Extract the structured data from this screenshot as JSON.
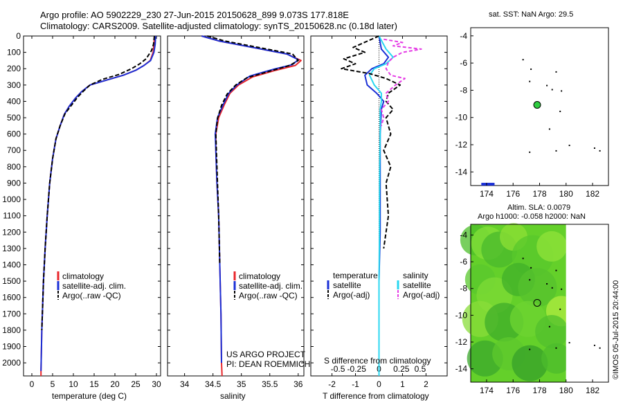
{
  "header": {
    "line1": "Argo profile: AO 5902229_230 27-Jun-2015 20150628_899 9.073S 177.818E",
    "line2": "Climatology: CARS2009. Satellite-adjusted climatology: synTS_20150628.nc (0.18d later)"
  },
  "colors": {
    "clim": "#e8262b",
    "sat": "#1a2fd6",
    "argo": "#000000",
    "cyan": "#28d7f0",
    "magenta": "#e53be5",
    "float": "#2ecc40"
  },
  "depth_ticks": [
    "0",
    "100",
    "200",
    "300",
    "400",
    "500",
    "600",
    "700",
    "800",
    "900",
    "1000",
    "1100",
    "1200",
    "1300",
    "1400",
    "1500",
    "1600",
    "1700",
    "1800",
    "1900",
    "2000"
  ],
  "chart_data": [
    {
      "type": "line",
      "id": "temperature",
      "xlabel": "temperature (deg C)",
      "ylabel": "",
      "xlim": [
        -2,
        31
      ],
      "ylim": [
        2080,
        0
      ],
      "xticks": [
        "0",
        "5",
        "10",
        "15",
        "20",
        "25",
        "30"
      ],
      "xtick_values": [
        0,
        5,
        10,
        15,
        20,
        25,
        30
      ],
      "legend": [
        "climatology",
        "satellite-adj. clim.",
        "Argo(..raw -QC)"
      ],
      "series": [
        {
          "name": "climatology",
          "color": "clim",
          "dash": "",
          "x": [
            29.5,
            29.4,
            29.2,
            28.5,
            27,
            25,
            22,
            18,
            14,
            12,
            10.5,
            9,
            7.8,
            6.8,
            5.8,
            5,
            4.3,
            3.7,
            3.2,
            2.8,
            2.4,
            2.2,
            2.2
          ],
          "depth": [
            0,
            50,
            100,
            150,
            180,
            210,
            240,
            270,
            300,
            340,
            380,
            430,
            480,
            550,
            630,
            750,
            900,
            1100,
            1300,
            1500,
            1800,
            2050,
            2080
          ]
        },
        {
          "name": "satellite",
          "color": "sat",
          "dash": "",
          "x": [
            29.8,
            29.7,
            29.4,
            28.6,
            27,
            25,
            22,
            18,
            14,
            12,
            10.5,
            9,
            7.8,
            6.8,
            5.8,
            5,
            4.3,
            3.7,
            3.2,
            2.8,
            2.4,
            2.2
          ],
          "depth": [
            0,
            50,
            100,
            150,
            180,
            210,
            240,
            270,
            300,
            340,
            380,
            430,
            480,
            550,
            630,
            750,
            900,
            1100,
            1300,
            1500,
            1800,
            2050
          ]
        },
        {
          "name": "Argo",
          "color": "argo",
          "dash": "6,3",
          "x": [
            29.5,
            29.3,
            28.8,
            27.5,
            26,
            24,
            21,
            17,
            14,
            12.5,
            11,
            9.5,
            8,
            6.8,
            5.8,
            5,
            4.3,
            3.7,
            3.2,
            2.8,
            2.4
          ],
          "depth": [
            0,
            50,
            90,
            140,
            170,
            200,
            235,
            265,
            300,
            335,
            375,
            425,
            475,
            550,
            630,
            750,
            900,
            1100,
            1300,
            1500,
            1800
          ]
        }
      ]
    },
    {
      "type": "line",
      "id": "salinity",
      "xlabel": "salinity",
      "xlim": [
        33.7,
        36.1
      ],
      "ylim": [
        2080,
        0
      ],
      "xticks": [
        "34",
        "34.5",
        "35",
        "35.5",
        "36"
      ],
      "xtick_values": [
        34,
        34.5,
        35,
        35.5,
        36
      ],
      "legend": [
        "climatology",
        "satellite-adj. clim.",
        "Argo(..raw -QC)"
      ],
      "footer": [
        "US ARGO PROJECT",
        "PI: DEAN ROEMMICH"
      ],
      "series": [
        {
          "name": "climatology",
          "color": "clim",
          "dash": "",
          "x": [
            34.3,
            34.6,
            35.2,
            35.8,
            36.05,
            35.95,
            35.6,
            35.2,
            34.95,
            34.8,
            34.7,
            34.6,
            34.55,
            34.55,
            34.57,
            34.6,
            34.62,
            34.64,
            34.65,
            34.66
          ],
          "depth": [
            0,
            30,
            70,
            110,
            150,
            180,
            210,
            250,
            300,
            350,
            420,
            500,
            600,
            700,
            900,
            1100,
            1400,
            1700,
            2000,
            2080
          ]
        },
        {
          "name": "satellite",
          "color": "sat",
          "dash": "",
          "x": [
            34.3,
            34.6,
            35.2,
            35.8,
            36.0,
            35.9,
            35.55,
            35.15,
            34.92,
            34.78,
            34.68,
            34.58,
            34.54,
            34.55,
            34.57,
            34.6,
            34.62,
            34.64,
            34.65
          ],
          "depth": [
            0,
            30,
            70,
            110,
            145,
            175,
            205,
            245,
            300,
            350,
            420,
            500,
            600,
            700,
            900,
            1100,
            1400,
            1700,
            2000
          ]
        },
        {
          "name": "Argo",
          "color": "argo",
          "dash": "6,3",
          "x": [
            34.4,
            34.7,
            35.3,
            35.9,
            36.0,
            35.85,
            35.5,
            35.1,
            34.9,
            34.75,
            34.65,
            34.58,
            34.55,
            34.56,
            34.58,
            34.6,
            34.62
          ],
          "depth": [
            0,
            30,
            70,
            110,
            150,
            180,
            215,
            255,
            300,
            355,
            425,
            505,
            600,
            700,
            900,
            1100,
            1400
          ]
        }
      ]
    },
    {
      "type": "line",
      "id": "difference",
      "xlabel": "T difference from climatology",
      "xlabel_top": "S difference from climatology",
      "xlim": [
        -2.9,
        2.9
      ],
      "ylim": [
        2080,
        0
      ],
      "xticks": [
        "-2",
        "-1",
        "0",
        "1",
        "2"
      ],
      "xtick_values": [
        -2,
        -1,
        0,
        1,
        2
      ],
      "sticks_top": [
        "-0.5",
        "-0.25",
        "0",
        "0.25",
        "0.5"
      ],
      "stick_values_top": [
        -1.75,
        -0.95,
        0,
        0.95,
        1.75
      ],
      "legend_t": [
        "temperature",
        "satellite",
        "Argo(-adj)"
      ],
      "legend_s": [
        "salinity",
        "satellite",
        "Argo(-adj)"
      ],
      "series": [
        {
          "name": "T satellite",
          "color": "sat",
          "dash": "",
          "x": [
            0,
            0.1,
            0.4,
            0.2,
            -0.3,
            -0.6,
            -0.5,
            -0.1,
            0.2,
            0.1,
            0.05,
            0.05,
            0.05,
            0.05,
            0.0,
            0.0,
            0.0
          ],
          "depth": [
            0,
            80,
            130,
            170,
            200,
            240,
            300,
            350,
            400,
            450,
            600,
            800,
            1000,
            1200,
            1500,
            1800,
            2050
          ]
        },
        {
          "name": "S satellite",
          "color": "cyan",
          "dash": "",
          "x": [
            0,
            0.3,
            0.6,
            0.3,
            -0.2,
            -0.4,
            -0.2,
            0.1,
            0.1,
            0.05,
            0.05,
            0.03,
            0.02,
            0.02,
            0.0,
            0.0,
            0.0
          ],
          "depth": [
            0,
            80,
            130,
            170,
            200,
            240,
            300,
            350,
            400,
            450,
            600,
            800,
            1000,
            1200,
            1500,
            1800,
            2080
          ]
        },
        {
          "name": "T Argo",
          "color": "argo",
          "dash": "6,3",
          "x": [
            0,
            -1.1,
            -0.6,
            -1.5,
            -1.0,
            -1.6,
            -0.4,
            0.3,
            0.9,
            0.4,
            0.3,
            0.6,
            0.3,
            0.5,
            0.2,
            0.5,
            0.3,
            0.4,
            0.2
          ],
          "depth": [
            0,
            70,
            100,
            140,
            170,
            200,
            230,
            260,
            300,
            350,
            400,
            450,
            500,
            600,
            700,
            800,
            900,
            1100,
            1300
          ]
        },
        {
          "name": "S Argo",
          "color": "magenta",
          "dash": "5,3",
          "x": [
            0.2,
            1.0,
            0.6,
            1.8,
            1.0,
            0.6,
            0.4,
            0.3,
            0.5,
            1.1,
            0.7,
            0.3,
            0.4,
            0.1,
            0.2,
            0.1
          ],
          "depth": [
            20,
            40,
            60,
            80,
            100,
            130,
            160,
            200,
            240,
            260,
            300,
            350,
            400,
            450,
            500,
            550
          ]
        }
      ]
    }
  ],
  "map_sst": {
    "title": "sat. SST: NaN Argo: 29.5",
    "xlim": [
      172.8,
      183.2
    ],
    "ylim": [
      -15,
      -3.4
    ],
    "xticks": [
      "174",
      "176",
      "178",
      "180",
      "182"
    ],
    "xtick_values": [
      174,
      176,
      178,
      180,
      182
    ],
    "yticks": [
      "-4",
      "-6",
      "-8",
      "-10",
      "-12",
      "-14"
    ],
    "ytick_values": [
      -4,
      -6,
      -8,
      -10,
      -12,
      -14
    ],
    "float": [
      177.818,
      -9.073
    ]
  },
  "map_sla": {
    "title1": "Altim. SLA: 0.0079",
    "title2": "Argo h1000: -0.058 h2000: NaN",
    "xlim": [
      172.8,
      183.2
    ],
    "ylim": [
      -15,
      -3.2
    ],
    "xticks": [
      "174",
      "176",
      "178",
      "180",
      "182"
    ],
    "xtick_values": [
      174,
      176,
      178,
      180,
      182
    ],
    "yticks": [
      "-4",
      "-6",
      "-8",
      "-10",
      "-12",
      "-14"
    ],
    "ytick_values": [
      -4,
      -6,
      -8,
      -10,
      -12,
      -14
    ],
    "float": [
      177.818,
      -9.073
    ],
    "sla_fill_east_limit": 180
  },
  "credit": "©IMOS 05-Jul-2015 20:44:00"
}
